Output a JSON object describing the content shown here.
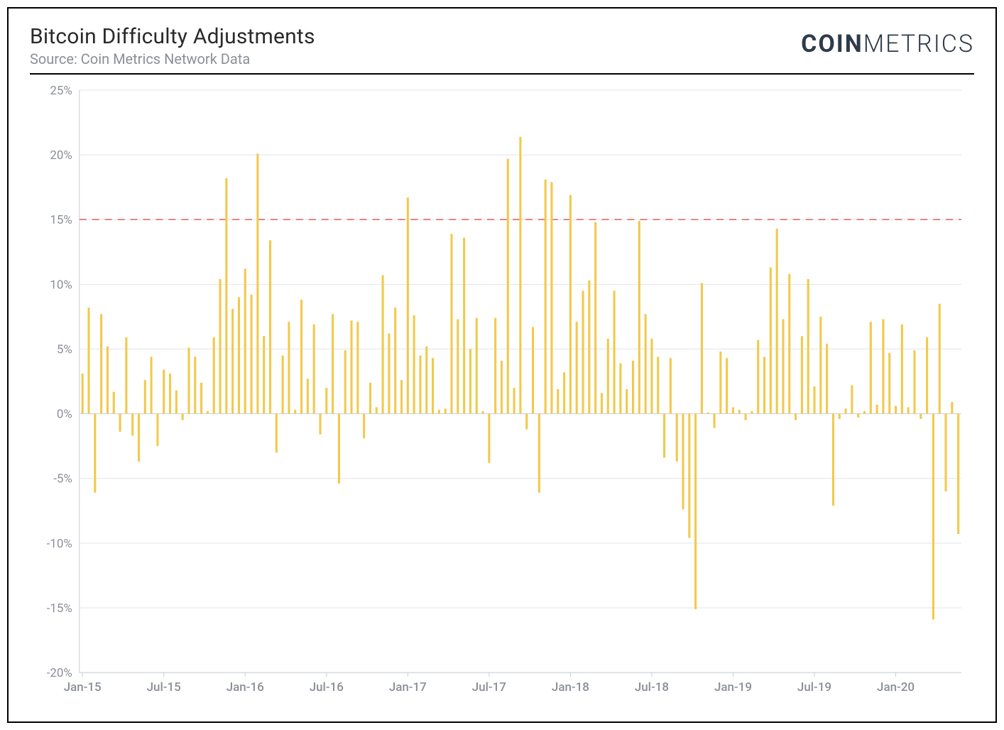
{
  "header": {
    "title": "Bitcoin Difficulty Adjustments",
    "subtitle": "Source: Coin Metrics Network Data",
    "logo_bold": "COIN",
    "logo_light": "METRICS"
  },
  "chart": {
    "type": "bar",
    "background_color": "#ffffff",
    "grid_color": "#e2e4e8",
    "zero_line_color": "#d0d4da",
    "axis_line_color": "#c8ccd2",
    "bar_color": "#f2c94c",
    "reference_line": {
      "value": 15,
      "color": "#e06a6a",
      "dash": "10 8"
    },
    "ylim": [
      -20,
      25
    ],
    "yticks": [
      -20,
      -15,
      -10,
      -5,
      0,
      5,
      10,
      15,
      20,
      25
    ],
    "ytick_labels": [
      "-20%",
      "-15%",
      "-10%",
      "-5%",
      "0%",
      "5%",
      "10%",
      "15%",
      "20%",
      "25%"
    ],
    "label_color": "#8a8f98",
    "label_fontsize": 17,
    "xtick_indices": [
      0,
      13,
      26,
      39,
      52,
      65,
      78,
      91,
      104,
      117,
      130
    ],
    "xtick_labels": [
      "Jan-15",
      "Jul-15",
      "Jan-16",
      "Jul-16",
      "Jan-17",
      "Jul-17",
      "Jan-18",
      "Jul-18",
      "Jan-19",
      "Jul-19",
      "Jan-20"
    ],
    "bar_width_ratio": 0.35,
    "values": [
      3.1,
      8.2,
      -6.1,
      7.7,
      5.2,
      1.7,
      -1.4,
      5.9,
      -1.7,
      -3.7,
      2.6,
      4.4,
      -2.5,
      3.4,
      3.1,
      1.8,
      -0.5,
      5.1,
      4.4,
      2.4,
      0.2,
      5.9,
      10.4,
      18.2,
      8.1,
      9.0,
      11.2,
      9.2,
      20.1,
      6.0,
      13.4,
      -3.0,
      4.5,
      7.1,
      0.3,
      8.8,
      2.7,
      6.9,
      -1.6,
      2.0,
      7.7,
      -5.4,
      4.9,
      7.2,
      7.1,
      -1.9,
      2.4,
      0.5,
      10.7,
      6.2,
      8.2,
      2.6,
      16.7,
      7.6,
      4.5,
      5.2,
      4.3,
      0.3,
      0.4,
      13.9,
      7.3,
      13.6,
      5.0,
      7.4,
      0.2,
      -3.8,
      7.4,
      4.1,
      19.7,
      2.0,
      21.4,
      -1.2,
      6.7,
      -6.1,
      18.1,
      17.9,
      1.9,
      3.2,
      16.9,
      7.1,
      9.5,
      10.3,
      14.8,
      1.6,
      5.8,
      9.5,
      3.9,
      1.9,
      4.1,
      14.9,
      7.7,
      5.8,
      4.4,
      -3.4,
      4.3,
      -3.7,
      -7.4,
      -9.6,
      -15.1,
      10.1,
      0.1,
      -1.1,
      4.8,
      4.3,
      0.5,
      0.3,
      -0.5,
      0.2,
      5.7,
      4.4,
      11.3,
      14.3,
      7.3,
      10.8,
      -0.5,
      6.0,
      10.4,
      2.1,
      7.5,
      5.4,
      -7.1,
      -0.4,
      0.4,
      2.2,
      -0.3,
      0.2,
      7.1,
      0.7,
      7.3,
      4.7,
      0.6,
      6.9,
      0.5,
      4.9,
      -0.4,
      5.9,
      -15.9,
      8.5,
      -6.0,
      0.9,
      -9.3
    ]
  }
}
